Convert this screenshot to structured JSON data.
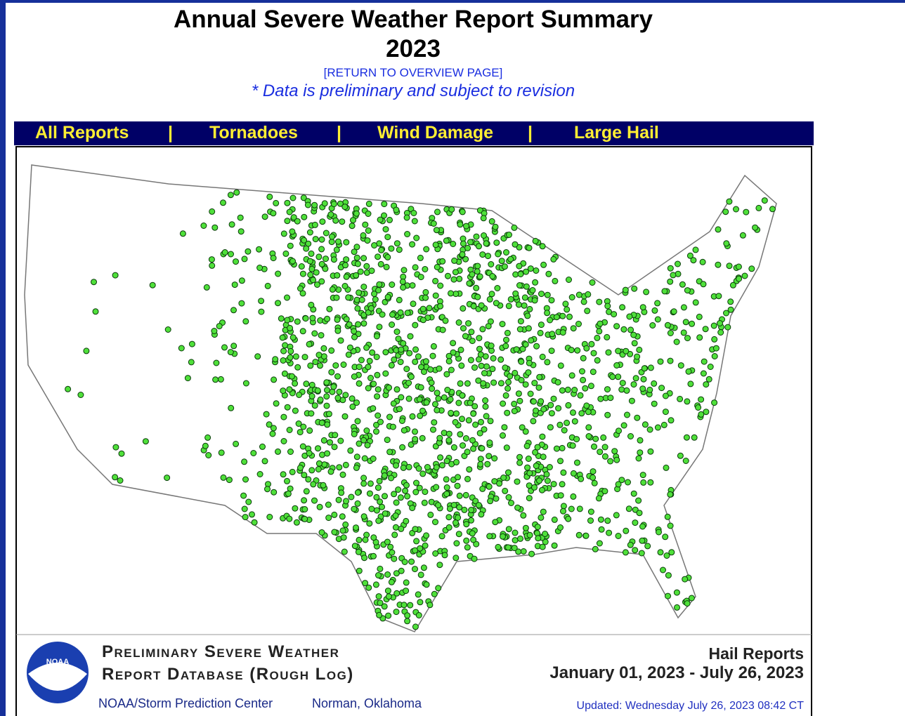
{
  "header": {
    "title": "Annual Severe Weather Report Summary",
    "year": "2023",
    "link": "[RETURN TO OVERVIEW PAGE]",
    "note": "* Data is preliminary and subject to revision"
  },
  "nav": {
    "items": [
      "All Reports",
      "Tornadoes",
      "Wind Damage",
      "Large Hail"
    ],
    "separator": "|"
  },
  "footer": {
    "line1": "Preliminary Severe Weather",
    "line2": "Report Database (Rough Log)",
    "org": "NOAA/Storm Prediction Center",
    "place": "Norman, Oklahoma",
    "logo": "NOAA",
    "report_type": "Hail Reports",
    "range": "January 01, 2023 - July 26, 2023",
    "updated": "Updated:  Wednesday July 26, 2023 08:42 CT"
  }
}
